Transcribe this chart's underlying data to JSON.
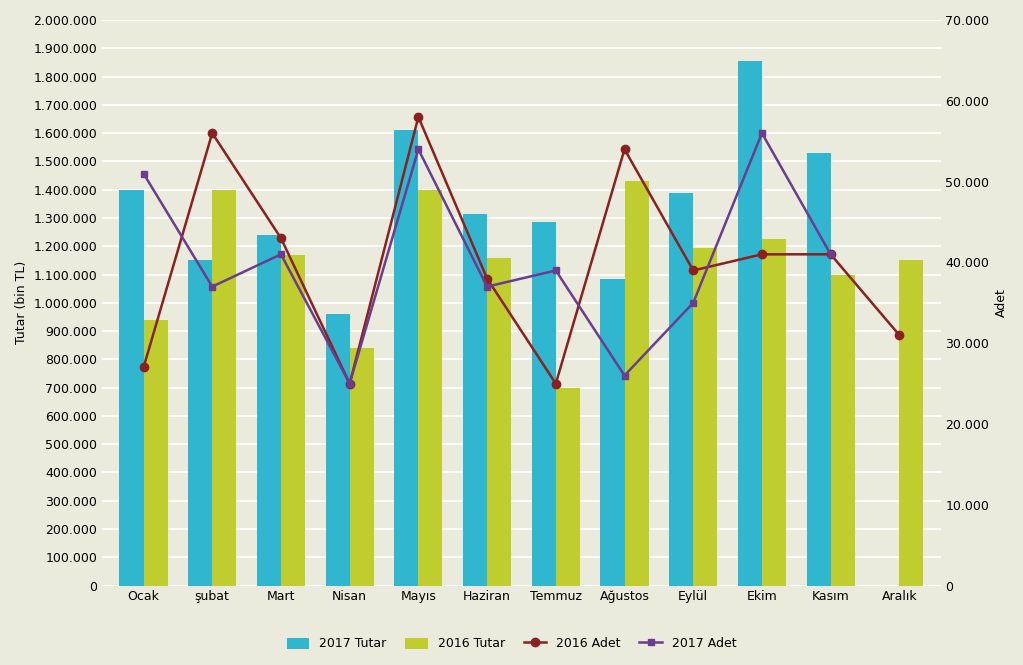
{
  "months": [
    "Ocak",
    "şubat",
    "Mart",
    "Nisan",
    "Mayıs",
    "Haziran",
    "Temmuz",
    "Ağustos",
    "Eylül",
    "Ekim",
    "Kasım",
    "Aralık"
  ],
  "tutar_2017": [
    1400000,
    1150000,
    1240000,
    960000,
    1610000,
    1315000,
    1285000,
    1085000,
    1390000,
    1855000,
    1530000,
    0
  ],
  "tutar_2016": [
    940000,
    1400000,
    1170000,
    840000,
    1400000,
    1160000,
    700000,
    1430000,
    1195000,
    1225000,
    1100000,
    1150000
  ],
  "adet_2016": [
    27000,
    56000,
    43000,
    25000,
    58000,
    38000,
    25000,
    54000,
    39000,
    41000,
    41000,
    31000
  ],
  "adet_2017": [
    51000,
    37000,
    41000,
    25000,
    54000,
    37000,
    39000,
    26000,
    35000,
    56000,
    41000,
    null
  ],
  "tutar_2017_mask": [
    1,
    1,
    1,
    1,
    1,
    1,
    1,
    1,
    1,
    1,
    1,
    0
  ],
  "bar_color_2017": "#31b6d0",
  "bar_color_2016": "#bfce2e",
  "line_color_2016": "#8b2020",
  "line_color_2017": "#6a3d8f",
  "ylabel_left": "Tutar (bin TL)",
  "ylabel_right": "Adet",
  "ylim_left": [
    0,
    2000000
  ],
  "ylim_right": [
    0,
    70000
  ],
  "yticks_left": [
    0,
    100000,
    200000,
    300000,
    400000,
    500000,
    600000,
    700000,
    800000,
    900000,
    1000000,
    1100000,
    1200000,
    1300000,
    1400000,
    1500000,
    1600000,
    1700000,
    1800000,
    1900000,
    2000000
  ],
  "yticks_right": [
    0,
    10000,
    20000,
    30000,
    40000,
    50000,
    60000,
    70000
  ],
  "legend_labels": [
    "2017 Tutar",
    "2016 Tutar",
    "2016 Adet",
    "2017 Adet"
  ],
  "background_color": "#ebebdd",
  "grid_color": "#ffffff"
}
